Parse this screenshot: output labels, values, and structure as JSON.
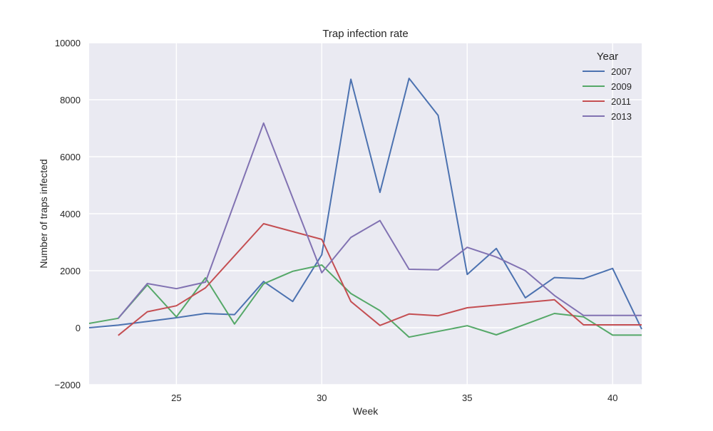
{
  "chart_data": {
    "type": "line",
    "title": "Trap infection rate",
    "xlabel": "Week",
    "ylabel": "Number of traps infected",
    "xlim": [
      22,
      41
    ],
    "ylim": [
      -2000,
      10000
    ],
    "xticks": [
      25,
      30,
      35,
      40
    ],
    "yticks": [
      -2000,
      0,
      2000,
      4000,
      6000,
      8000,
      10000
    ],
    "grid": true,
    "legend": {
      "title": "Year",
      "placement": "top-right"
    },
    "series": [
      {
        "name": "2007",
        "color": "#4c72b0",
        "points": [
          [
            22,
            0
          ],
          [
            23,
            90
          ],
          [
            24,
            220
          ],
          [
            25,
            350
          ],
          [
            26,
            500
          ],
          [
            27,
            460
          ],
          [
            28,
            1620
          ],
          [
            29,
            920
          ],
          [
            30,
            2560
          ],
          [
            31,
            8720
          ],
          [
            32,
            4750
          ],
          [
            33,
            8750
          ],
          [
            34,
            7450
          ],
          [
            35,
            1870
          ],
          [
            36,
            2780
          ],
          [
            37,
            1050
          ],
          [
            38,
            1760
          ],
          [
            39,
            1720
          ],
          [
            40,
            2080
          ],
          [
            41,
            -50
          ]
        ]
      },
      {
        "name": "2009",
        "color": "#55a868",
        "points": [
          [
            22,
            150
          ],
          [
            23,
            330
          ],
          [
            24,
            1500
          ],
          [
            25,
            380
          ],
          [
            26,
            1750
          ],
          [
            27,
            130
          ],
          [
            28,
            1540
          ],
          [
            29,
            1980
          ],
          [
            30,
            2200
          ],
          [
            31,
            1200
          ],
          [
            32,
            600
          ],
          [
            33,
            -330
          ],
          [
            34,
            -130
          ],
          [
            35,
            70
          ],
          [
            36,
            -250
          ],
          [
            37,
            120
          ],
          [
            38,
            500
          ],
          [
            39,
            380
          ],
          [
            40,
            -260
          ],
          [
            41,
            -260
          ]
        ]
      },
      {
        "name": "2011",
        "color": "#c44e52",
        "points": [
          [
            23,
            -270
          ],
          [
            24,
            560
          ],
          [
            25,
            770
          ],
          [
            26,
            1400
          ],
          [
            28,
            3650
          ],
          [
            30,
            3100
          ],
          [
            31,
            920
          ],
          [
            32,
            80
          ],
          [
            33,
            480
          ],
          [
            34,
            420
          ],
          [
            35,
            700
          ],
          [
            38,
            980
          ],
          [
            39,
            100
          ],
          [
            40,
            100
          ],
          [
            41,
            100
          ]
        ]
      },
      {
        "name": "2013",
        "color": "#8172b2",
        "points": [
          [
            23,
            330
          ],
          [
            24,
            1550
          ],
          [
            25,
            1370
          ],
          [
            26,
            1600
          ],
          [
            28,
            7180
          ],
          [
            30,
            1930
          ],
          [
            31,
            3170
          ],
          [
            32,
            3760
          ],
          [
            33,
            2050
          ],
          [
            34,
            2030
          ],
          [
            35,
            2820
          ],
          [
            36,
            2480
          ],
          [
            37,
            2000
          ],
          [
            38,
            1130
          ],
          [
            39,
            430
          ],
          [
            40,
            430
          ],
          [
            41,
            430
          ]
        ]
      }
    ]
  }
}
